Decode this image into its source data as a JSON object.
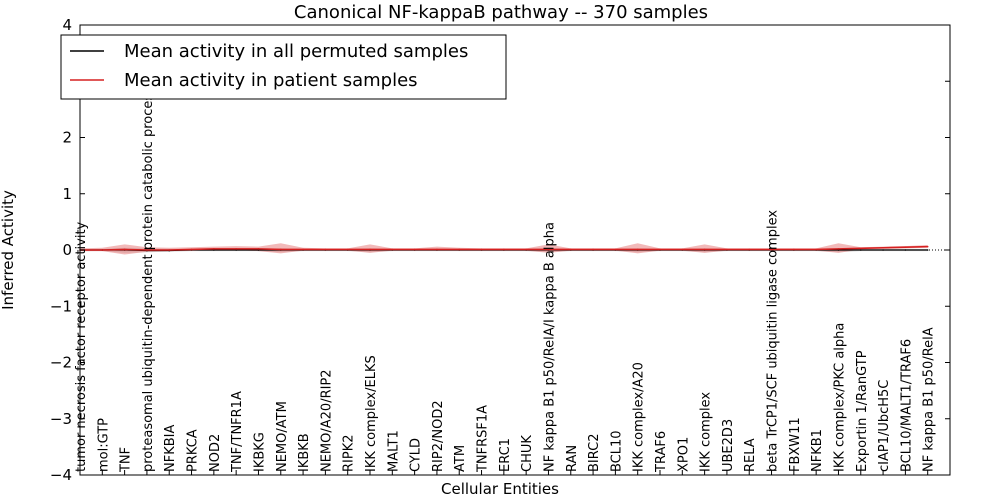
{
  "chart_data": {
    "type": "line",
    "title": "Canonical NF-kappaB pathway -- 370 samples",
    "xlabel": "Cellular Entities",
    "ylabel": "Inferred Activity",
    "ylim": [
      -4,
      4
    ],
    "yticks": [
      4,
      3,
      2,
      1,
      0,
      -1,
      -2,
      -3,
      -4
    ],
    "ytick_labels": [
      "4",
      "3",
      "2",
      "1",
      "0",
      "−1",
      "−2",
      "−3",
      "−4"
    ],
    "legend_position": "upper-left",
    "categories": [
      "tumor necrosis factor receptor activity",
      "mol:GTP",
      "TNF",
      "proteasomal ubiquitin-dependent protein catabolic process",
      "NFKBIA",
      "PRKCA",
      "NOD2",
      "TNF/TNFR1A",
      "IKBKG",
      "NEMO/ATM",
      "IKBKB",
      "NEMO/A20/RIP2",
      "RIPK2",
      "IKK complex/ELKS",
      "MALT1",
      "CYLD",
      "RIP2/NOD2",
      "ATM",
      "TNFRSF1A",
      "ERC1",
      "CHUK",
      "NF kappa B1 p50/RelA/I kappa B alpha",
      "RAN",
      "BIRC2",
      "BCL10",
      "IKK complex/A20",
      "TRAF6",
      "XPO1",
      "IKK complex",
      "UBE2D3",
      "RELA",
      "beta TrCP1/SCF ubiquitin ligase complex",
      "FBXW11",
      "NFKB1",
      "IKK complex/PKC alpha",
      "Exportin 1/RanGTP",
      "cIAP1/UbcH5C",
      "BCL10/MALT1/TRAF6",
      "NF kappa B1 p50/RelA"
    ],
    "series": [
      {
        "name": "Mean activity in all permuted samples",
        "color": "#000000",
        "band_color": "#8c8c8c",
        "values": [
          0,
          0,
          0,
          -0.01,
          -0.01,
          0,
          0,
          0,
          0,
          0,
          0,
          0,
          0,
          0,
          0,
          0,
          0,
          0,
          0,
          0,
          0,
          0,
          0,
          0,
          0,
          0,
          0,
          0,
          0,
          0,
          0,
          0,
          0,
          0,
          0,
          0,
          0,
          0,
          0
        ],
        "band_low": [
          -0.02,
          -0.02,
          -0.05,
          -0.04,
          -0.03,
          -0.02,
          -0.02,
          -0.02,
          -0.02,
          -0.04,
          -0.02,
          -0.02,
          -0.02,
          -0.04,
          -0.02,
          -0.02,
          -0.02,
          -0.02,
          -0.02,
          -0.02,
          -0.02,
          -0.04,
          -0.02,
          -0.02,
          -0.02,
          -0.04,
          -0.02,
          -0.02,
          -0.04,
          -0.02,
          -0.02,
          -0.02,
          -0.02,
          -0.02,
          -0.04,
          -0.02,
          -0.02,
          -0.02,
          -0.02
        ],
        "band_high": [
          0.02,
          0.02,
          0.04,
          0.03,
          0.02,
          0.02,
          0.02,
          0.02,
          0.02,
          0.03,
          0.02,
          0.02,
          0.02,
          0.03,
          0.02,
          0.02,
          0.02,
          0.02,
          0.02,
          0.02,
          0.02,
          0.03,
          0.02,
          0.02,
          0.02,
          0.03,
          0.02,
          0.02,
          0.03,
          0.02,
          0.02,
          0.02,
          0.02,
          0.02,
          0.03,
          0.02,
          0.02,
          0.02,
          0.02
        ]
      },
      {
        "name": "Mean activity in patient samples",
        "color": "#d62020",
        "band_color": "#e88080",
        "values": [
          0,
          0,
          0.01,
          0,
          0,
          0.01,
          0.02,
          0.02,
          0.02,
          0.01,
          0.01,
          0.01,
          0.01,
          0.01,
          0.01,
          0.01,
          0.01,
          0.01,
          0.01,
          0.01,
          0.01,
          0.01,
          0.01,
          0.01,
          0.01,
          0.01,
          0.01,
          0.01,
          0.01,
          0.01,
          0.01,
          0.01,
          0.01,
          0.01,
          0.02,
          0.03,
          0.04,
          0.05,
          0.06
        ],
        "band_low": [
          -0.02,
          -0.02,
          -0.08,
          -0.03,
          -0.02,
          -0.01,
          0,
          0,
          -0.02,
          -0.06,
          -0.01,
          -0.01,
          -0.01,
          -0.05,
          -0.01,
          -0.01,
          -0.01,
          -0.01,
          -0.01,
          -0.01,
          -0.01,
          -0.05,
          -0.01,
          -0.01,
          -0.01,
          -0.06,
          -0.01,
          -0.01,
          -0.05,
          -0.01,
          -0.01,
          -0.01,
          -0.01,
          -0.01,
          -0.05,
          0.01,
          0.02,
          0.03,
          0.04
        ],
        "band_high": [
          0.03,
          0.04,
          0.1,
          0.05,
          0.04,
          0.05,
          0.06,
          0.07,
          0.06,
          0.12,
          0.04,
          0.03,
          0.03,
          0.1,
          0.03,
          0.03,
          0.06,
          0.04,
          0.03,
          0.03,
          0.03,
          0.1,
          0.03,
          0.03,
          0.03,
          0.12,
          0.03,
          0.03,
          0.1,
          0.03,
          0.03,
          0.03,
          0.03,
          0.03,
          0.12,
          0.05,
          0.06,
          0.07,
          0.09
        ]
      }
    ]
  }
}
